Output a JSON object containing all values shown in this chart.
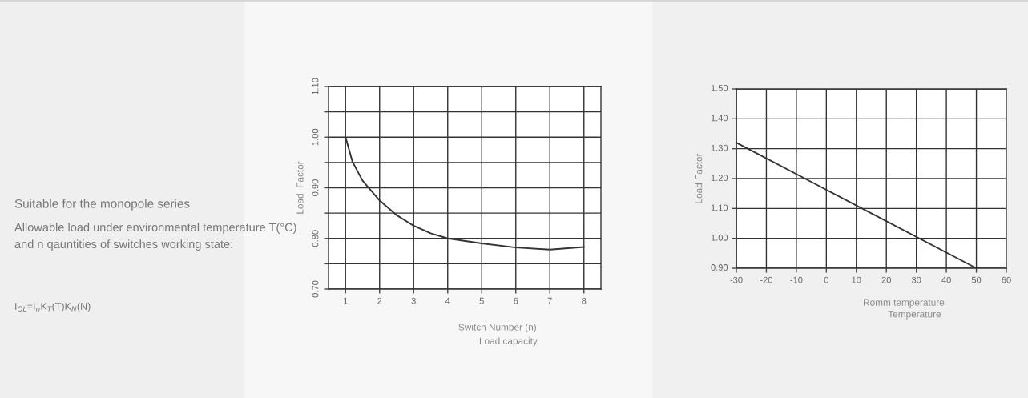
{
  "chart_data": [
    {
      "type": "other",
      "annotations": [
        "Suitable for the monopole series",
        "Allowable load under environmental temperature T(°C) and n qauntities of switches working state:",
        "I$_{OL}$=I$_{n}$K$_{T}$(T)K$_{N}$(N)"
      ]
    },
    {
      "type": "line",
      "xlabel": "Switch Number (n)",
      "ylabel": "Load  Factor",
      "annotations": [
        "Load capacity"
      ],
      "x": [
        1,
        1.2,
        1.5,
        2,
        2.5,
        3,
        3.5,
        4,
        5,
        6,
        7,
        8
      ],
      "series": [
        {
          "color": "#333333",
          "values": [
            1.0,
            0.952,
            0.914,
            0.875,
            0.846,
            0.825,
            0.81,
            0.8,
            0.79,
            0.782,
            0.778,
            0.783
          ]
        }
      ],
      "xlim": [
        0.5,
        8.5
      ],
      "xticks": [
        1,
        2,
        3,
        4,
        5,
        6,
        7,
        8
      ],
      "ylim": [
        0.7,
        1.1
      ],
      "yticks": [
        {
          "value": 0.7,
          "label": "0.70"
        },
        {
          "value": 0.75,
          "label": null
        },
        {
          "value": 0.8,
          "label": "0.80"
        },
        {
          "value": 0.85,
          "label": null
        },
        {
          "value": 0.9,
          "label": "0.90"
        },
        {
          "value": 0.95,
          "label": null
        },
        {
          "value": 1.0,
          "label": "1.00"
        },
        {
          "value": 1.05,
          "label": null
        },
        {
          "value": 1.1,
          "label": "1.10"
        }
      ],
      "grid": true,
      "marker": "none",
      "line_style": "solid"
    },
    {
      "type": "line",
      "xlabel": "Romm temperature",
      "ylabel": "Load Factor",
      "annotations": [
        "Temperature"
      ],
      "x": [
        -30,
        50
      ],
      "series": [
        {
          "color": "#333333",
          "values": [
            1.32,
            0.9
          ]
        }
      ],
      "xlim": [
        -30,
        60
      ],
      "xticks": [
        -30,
        -20,
        -10,
        0,
        10,
        20,
        30,
        40,
        50,
        60
      ],
      "ylim": [
        0.9,
        1.5
      ],
      "yticks": [
        {
          "value": 0.9,
          "label": "0.90"
        },
        {
          "value": 1.0,
          "label": "1.00"
        },
        {
          "value": 1.1,
          "label": "1.10"
        },
        {
          "value": 1.2,
          "label": "1.20"
        },
        {
          "value": 1.3,
          "label": "1.30"
        },
        {
          "value": 1.4,
          "label": "1.40"
        },
        {
          "value": 1.5,
          "label": "1.50"
        }
      ],
      "grid": true,
      "marker": "none",
      "line_style": "solid"
    }
  ]
}
